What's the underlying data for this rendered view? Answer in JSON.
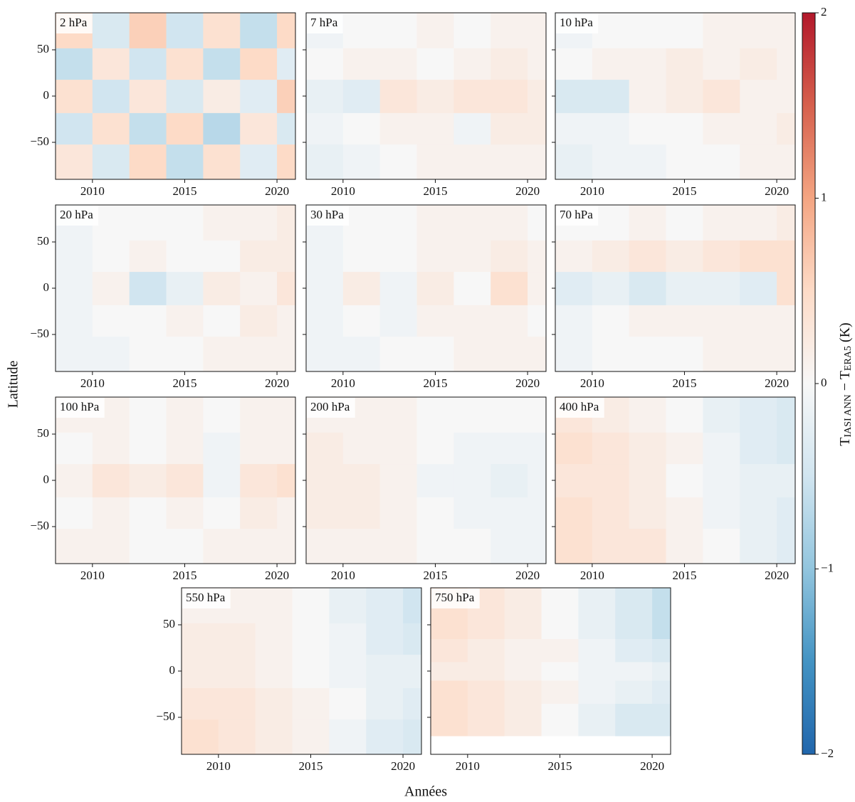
{
  "figure": {
    "xlabel": "Années",
    "ylabel": "Latitude",
    "colorbar": {
      "label": {
        "main1": "T",
        "sub1": "IASI ANN",
        "main2": " − T",
        "sub2": "ERA5",
        "unit": " (K)"
      },
      "lim": [
        -2,
        2
      ],
      "ticks": [
        {
          "value": -2,
          "label": "−2"
        },
        {
          "value": -1,
          "label": "−1"
        },
        0,
        1,
        2
      ],
      "colormap": [
        "#2166ac",
        "#4393c3",
        "#92c5de",
        "#d1e5f0",
        "#f7f7f7",
        "#fddbc7",
        "#f4a582",
        "#d6604d",
        "#b2182b"
      ]
    }
  },
  "chart_data": [
    {
      "type": "heatmap",
      "title": "2 hPa",
      "xlim": [
        2008,
        2021
      ],
      "ylim": [
        -90,
        90
      ],
      "xticks": [
        2010,
        2015,
        2020
      ],
      "yticks": [
        {
          "value": -50,
          "label": "−50"
        },
        0,
        50
      ],
      "xbins": [
        2008,
        2010,
        2012,
        2014,
        2016,
        2018,
        2020,
        2021
      ],
      "ybins": [
        -90,
        -52,
        -18,
        18,
        52,
        90
      ],
      "values": [
        [
          0.3,
          -0.4,
          0.5,
          -0.6,
          0.4,
          -0.3,
          0.5
        ],
        [
          -0.5,
          0.4,
          -0.6,
          0.5,
          -0.7,
          0.3,
          -0.4
        ],
        [
          0.4,
          -0.5,
          0.3,
          -0.4,
          0.2,
          -0.3,
          0.6
        ],
        [
          -0.6,
          0.3,
          -0.5,
          0.4,
          -0.6,
          0.5,
          -0.3
        ],
        [
          0.5,
          -0.4,
          0.6,
          -0.5,
          0.4,
          -0.6,
          0.5
        ]
      ]
    },
    {
      "type": "heatmap",
      "title": "7 hPa",
      "xlim": [
        2008,
        2021
      ],
      "ylim": [
        -90,
        90
      ],
      "xticks": [
        2010,
        2015,
        2020
      ],
      "yticks": [
        {
          "value": -50,
          "label": "−50"
        },
        0,
        50
      ],
      "xbins": [
        2008,
        2010,
        2012,
        2014,
        2016,
        2018,
        2020,
        2021
      ],
      "ybins": [
        -90,
        -52,
        -18,
        18,
        52,
        90
      ],
      "values": [
        [
          -0.2,
          -0.1,
          0,
          0.1,
          0.1,
          0.1,
          0.1
        ],
        [
          -0.1,
          0,
          0.1,
          0.1,
          -0.1,
          0.2,
          0.2
        ],
        [
          -0.2,
          -0.3,
          0.3,
          0.2,
          0.3,
          0.3,
          0.2
        ],
        [
          0,
          0.1,
          0.1,
          0,
          0.1,
          0.2,
          0.1
        ],
        [
          -0.1,
          0,
          0,
          0.1,
          0,
          0.1,
          0.1
        ]
      ]
    },
    {
      "type": "heatmap",
      "title": "10 hPa",
      "xlim": [
        2008,
        2021
      ],
      "ylim": [
        -90,
        90
      ],
      "xticks": [
        2010,
        2015,
        2020
      ],
      "yticks": [
        {
          "value": -50,
          "label": "−50"
        },
        0,
        50
      ],
      "xbins": [
        2008,
        2010,
        2012,
        2014,
        2016,
        2018,
        2020,
        2021
      ],
      "ybins": [
        -90,
        -52,
        -18,
        18,
        52,
        90
      ],
      "values": [
        [
          -0.2,
          -0.1,
          -0.1,
          0,
          0,
          0.1,
          0.1
        ],
        [
          -0.1,
          -0.1,
          0,
          0,
          0.1,
          0.1,
          0.2
        ],
        [
          -0.4,
          -0.4,
          0.1,
          0.2,
          0.3,
          0.1,
          0.1
        ],
        [
          0,
          0.1,
          0.1,
          0.2,
          0.1,
          0.2,
          0.1
        ],
        [
          -0.1,
          0,
          0,
          0,
          0.1,
          0.1,
          0.1
        ]
      ]
    },
    {
      "type": "heatmap",
      "title": "20 hPa",
      "xlim": [
        2008,
        2021
      ],
      "ylim": [
        -90,
        90
      ],
      "xticks": [
        2010,
        2015,
        2020
      ],
      "yticks": [
        {
          "value": -50,
          "label": "−50"
        },
        0,
        50
      ],
      "xbins": [
        2008,
        2010,
        2012,
        2014,
        2016,
        2018,
        2020,
        2021
      ],
      "ybins": [
        -90,
        -52,
        -18,
        18,
        52,
        90
      ],
      "values": [
        [
          -0.1,
          -0.1,
          0,
          0,
          0.1,
          0.1,
          0.1
        ],
        [
          -0.1,
          0,
          0,
          0.1,
          0,
          0.2,
          0.1
        ],
        [
          -0.1,
          0.1,
          -0.5,
          -0.2,
          0.2,
          0.1,
          0.3
        ],
        [
          -0.1,
          0,
          0.1,
          0,
          0,
          0.2,
          0.2
        ],
        [
          -0.1,
          0,
          0,
          0,
          0.1,
          0.1,
          0.2
        ]
      ]
    },
    {
      "type": "heatmap",
      "title": "30 hPa",
      "xlim": [
        2008,
        2021
      ],
      "ylim": [
        -90,
        90
      ],
      "xticks": [
        2010,
        2015,
        2020
      ],
      "yticks": [
        {
          "value": -50,
          "label": "−50"
        },
        0,
        50
      ],
      "xbins": [
        2008,
        2010,
        2012,
        2014,
        2016,
        2018,
        2020,
        2021
      ],
      "ybins": [
        -90,
        -52,
        -18,
        18,
        52,
        90
      ],
      "values": [
        [
          -0.1,
          -0.1,
          0,
          0,
          0.1,
          0.1,
          0.1
        ],
        [
          -0.1,
          0,
          -0.1,
          0.1,
          0.1,
          0.1,
          0
        ],
        [
          -0.1,
          0.2,
          -0.1,
          0.2,
          0,
          0.4,
          0.1
        ],
        [
          -0.1,
          0,
          0,
          0.1,
          0.1,
          0.2,
          0.1
        ],
        [
          -0.1,
          0,
          0,
          0.1,
          0.1,
          0.1,
          0
        ]
      ]
    },
    {
      "type": "heatmap",
      "title": "70 hPa",
      "xlim": [
        2008,
        2021
      ],
      "ylim": [
        -90,
        90
      ],
      "xticks": [
        2010,
        2015,
        2020
      ],
      "yticks": [
        {
          "value": -50,
          "label": "−50"
        },
        0,
        50
      ],
      "xbins": [
        2008,
        2010,
        2012,
        2014,
        2016,
        2018,
        2020,
        2021
      ],
      "ybins": [
        -90,
        -52,
        -18,
        18,
        52,
        90
      ],
      "values": [
        [
          -0.1,
          0,
          0,
          0,
          0.1,
          0.1,
          0.1
        ],
        [
          -0.1,
          0,
          0.1,
          0.1,
          0.1,
          0.1,
          0.1
        ],
        [
          -0.3,
          -0.2,
          -0.4,
          -0.2,
          -0.2,
          -0.3,
          0.4
        ],
        [
          0.1,
          0.2,
          0.3,
          0.2,
          0.3,
          0.4,
          0.4
        ],
        [
          0,
          0,
          0.1,
          0,
          0.1,
          0.1,
          0.2
        ]
      ]
    },
    {
      "type": "heatmap",
      "title": "100 hPa",
      "xlim": [
        2008,
        2021
      ],
      "ylim": [
        -90,
        90
      ],
      "xticks": [
        2010,
        2015,
        2020
      ],
      "yticks": [
        {
          "value": -50,
          "label": "−50"
        },
        0,
        50
      ],
      "xbins": [
        2008,
        2010,
        2012,
        2014,
        2016,
        2018,
        2020,
        2021
      ],
      "ybins": [
        -90,
        -52,
        -18,
        18,
        52,
        90
      ],
      "values": [
        [
          0.1,
          0.1,
          0,
          0,
          0.1,
          0.1,
          0.1
        ],
        [
          0,
          0.1,
          0,
          0.1,
          0,
          0.2,
          0.1
        ],
        [
          0.1,
          0.3,
          0.2,
          0.3,
          -0.1,
          0.3,
          0.4
        ],
        [
          0,
          0.1,
          0,
          0.1,
          -0.1,
          0.1,
          0.1
        ],
        [
          0.1,
          0.1,
          0,
          0.1,
          0,
          0.1,
          0.1
        ]
      ]
    },
    {
      "type": "heatmap",
      "title": "200 hPa",
      "xlim": [
        2008,
        2021
      ],
      "ylim": [
        -90,
        90
      ],
      "xticks": [
        2010,
        2015,
        2020
      ],
      "yticks": [
        {
          "value": -50,
          "label": "−50"
        },
        0,
        50
      ],
      "xbins": [
        2008,
        2010,
        2012,
        2014,
        2016,
        2018,
        2020,
        2021
      ],
      "ybins": [
        -90,
        -52,
        -18,
        18,
        52,
        90
      ],
      "values": [
        [
          0.1,
          0.1,
          0.1,
          0,
          0,
          -0.1,
          -0.1
        ],
        [
          0.2,
          0.2,
          0.1,
          0,
          -0.1,
          -0.1,
          -0.1
        ],
        [
          0.2,
          0.2,
          0.1,
          -0.1,
          -0.1,
          -0.2,
          -0.1
        ],
        [
          0.2,
          0.1,
          0.1,
          0,
          -0.1,
          -0.1,
          -0.1
        ],
        [
          0.1,
          0.1,
          0.1,
          0,
          0,
          0,
          0
        ]
      ]
    },
    {
      "type": "heatmap",
      "title": "400 hPa",
      "xlim": [
        2008,
        2021
      ],
      "ylim": [
        -90,
        90
      ],
      "xticks": [
        2010,
        2015,
        2020
      ],
      "yticks": [
        {
          "value": -50,
          "label": "−50"
        },
        0,
        50
      ],
      "xbins": [
        2008,
        2010,
        2012,
        2014,
        2016,
        2018,
        2020,
        2021
      ],
      "ybins": [
        -90,
        -52,
        -18,
        18,
        52,
        90
      ],
      "values": [
        [
          0.4,
          0.3,
          0.3,
          0.1,
          0,
          -0.2,
          -0.3
        ],
        [
          0.4,
          0.3,
          0.2,
          0.1,
          -0.1,
          -0.2,
          -0.3
        ],
        [
          0.3,
          0.3,
          0.2,
          0,
          -0.1,
          -0.2,
          -0.2
        ],
        [
          0.4,
          0.3,
          0.2,
          0.1,
          -0.1,
          -0.3,
          -0.4
        ],
        [
          0.3,
          0.2,
          0.1,
          0,
          -0.2,
          -0.3,
          -0.4
        ]
      ]
    },
    {
      "type": "heatmap",
      "title": "550 hPa",
      "xlim": [
        2008,
        2021
      ],
      "ylim": [
        -90,
        90
      ],
      "xticks": [
        2010,
        2015,
        2020
      ],
      "yticks": [
        {
          "value": -50,
          "label": "−50"
        },
        0,
        50
      ],
      "xbins": [
        2008,
        2010,
        2012,
        2014,
        2016,
        2018,
        2020,
        2021
      ],
      "ybins": [
        -90,
        -52,
        -18,
        18,
        52,
        90
      ],
      "values": [
        [
          0.4,
          0.3,
          0.2,
          0.1,
          -0.1,
          -0.3,
          -0.4
        ],
        [
          0.3,
          0.3,
          0.2,
          0.1,
          0,
          -0.2,
          -0.3
        ],
        [
          0.2,
          0.2,
          0.1,
          0,
          -0.1,
          -0.2,
          -0.2
        ],
        [
          0.2,
          0.2,
          0.1,
          0,
          -0.1,
          -0.3,
          -0.4
        ],
        [
          0.1,
          0.1,
          0.1,
          0,
          -0.2,
          -0.3,
          -0.5
        ]
      ]
    },
    {
      "type": "heatmap",
      "title": "750 hPa",
      "xlim": [
        2008,
        2021
      ],
      "ylim": [
        -90,
        90
      ],
      "xticks": [
        2010,
        2015,
        2020
      ],
      "yticks": [
        {
          "value": -50,
          "label": "−50"
        },
        0,
        50
      ],
      "xbins": [
        2008,
        2010,
        2012,
        2014,
        2016,
        2018,
        2020,
        2021
      ],
      "ybins": [
        -70,
        -35,
        -10,
        10,
        35,
        90
      ],
      "values": [
        [
          0.4,
          0.3,
          0.2,
          0,
          -0.2,
          -0.4,
          -0.4
        ],
        [
          0.4,
          0.3,
          0.2,
          0.1,
          -0.1,
          -0.2,
          -0.3
        ],
        [
          0.2,
          0.2,
          0.1,
          0,
          -0.1,
          -0.1,
          -0.2
        ],
        [
          0.3,
          0.2,
          0.1,
          0.1,
          -0.1,
          -0.3,
          -0.4
        ],
        [
          0.4,
          0.3,
          0.2,
          0,
          -0.2,
          -0.4,
          -0.6
        ]
      ]
    }
  ]
}
